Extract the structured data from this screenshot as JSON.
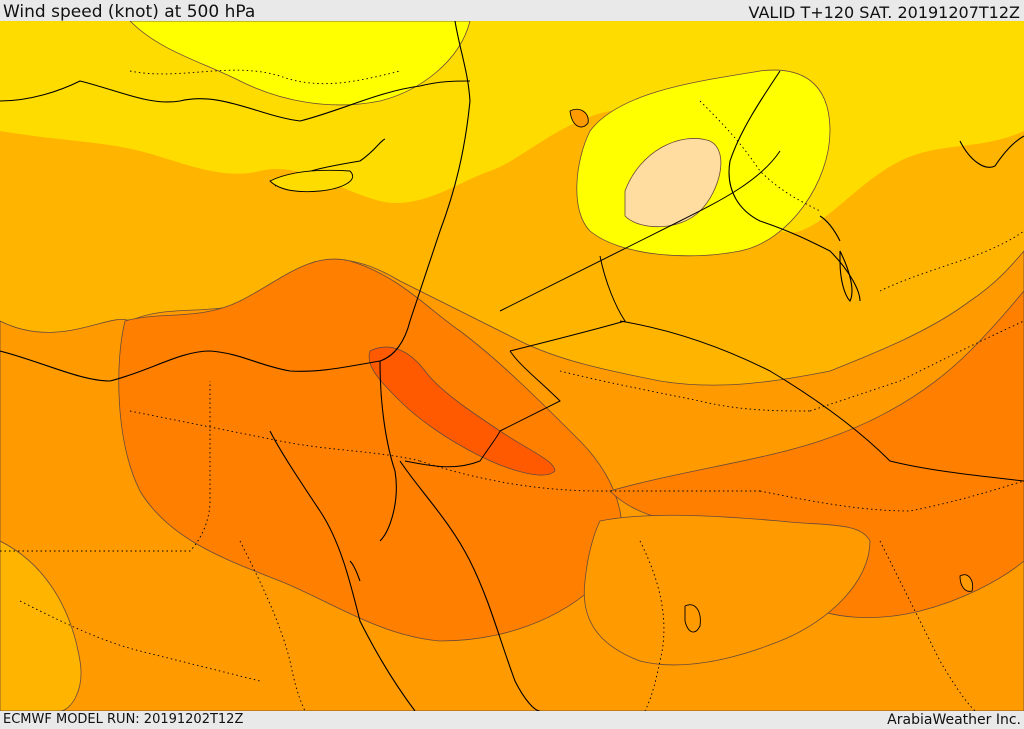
{
  "header": {
    "title": "Wind speed (knot) at 500 hPa",
    "valid": "VALID T+120 SAT. 20191207T12Z"
  },
  "footer": {
    "model_run": "ECMWF MODEL RUN: 20191202T12Z",
    "credit": "ArabiaWeather Inc."
  },
  "map": {
    "parameter": "wind speed",
    "level": "500 hPa",
    "units": "knot",
    "palette": {
      "level_1": "#ffb400",
      "level_2": "#ffdc00",
      "level_3": "#ffff00",
      "level_4": "#ffdca0",
      "level_5": "#ff9a00",
      "level_6": "#ff7f00",
      "level_7": "#ff5a00",
      "coastline": "#000000",
      "contour": "#6a4a3a"
    }
  }
}
